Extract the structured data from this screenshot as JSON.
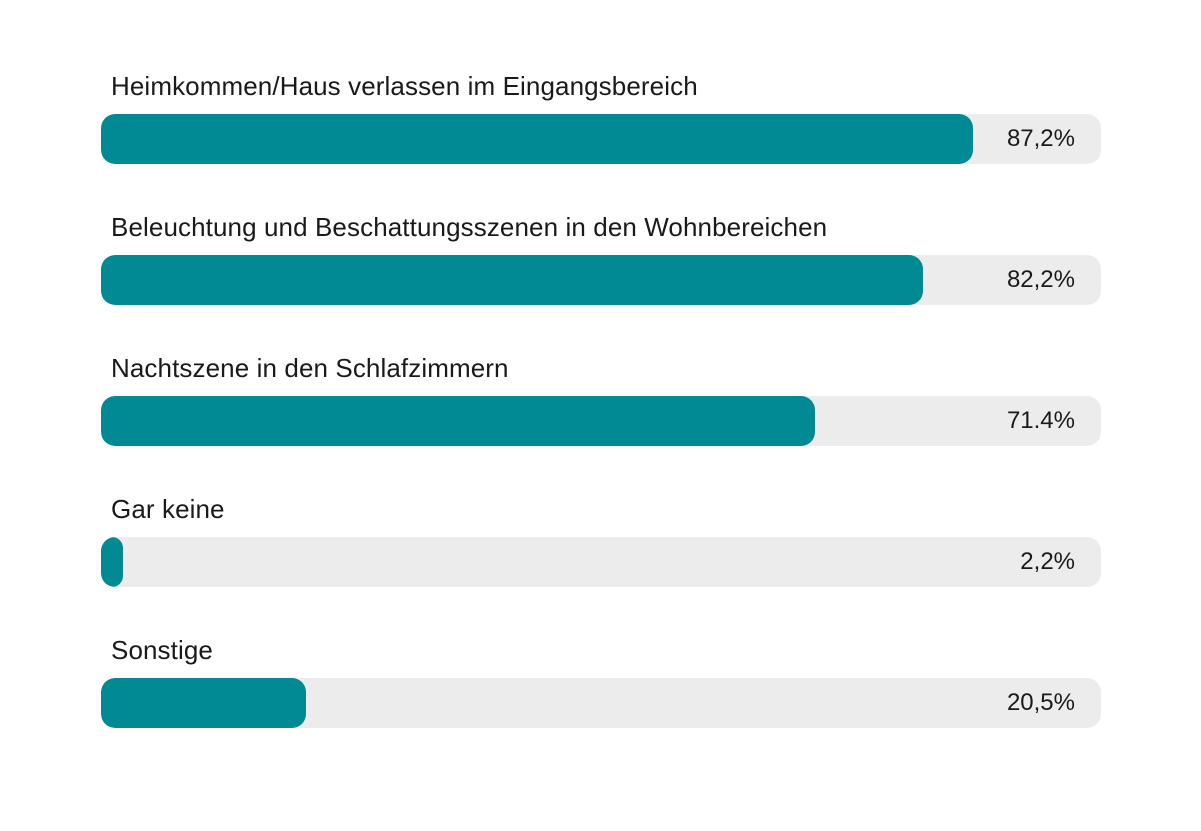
{
  "chart_data": {
    "type": "bar",
    "orientation": "horizontal",
    "categories": [
      "Heimkommen/Haus verlassen im Eingangsbereich",
      "Beleuchtung und Beschattungsszenen in den Wohnbereichen",
      "Nachtszene in den Schlafzimmern",
      "Gar keine",
      "Sonstige"
    ],
    "values": [
      87.2,
      82.2,
      71.4,
      2.2,
      20.5
    ],
    "value_labels": [
      "87,2%",
      "82,2%",
      "71.4%",
      "2,2%",
      "20,5%"
    ],
    "xlim": [
      0,
      100
    ],
    "unit": "%",
    "title": "",
    "xlabel": "",
    "ylabel": "",
    "grid": false,
    "legend": "none"
  },
  "colors": {
    "bar": "#028a94",
    "track": "#ececec",
    "text": "#1a1a1a",
    "background": "#ffffff"
  }
}
